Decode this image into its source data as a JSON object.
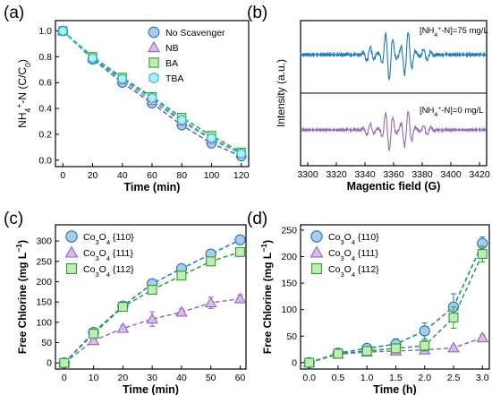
{
  "chart_data": [
    {
      "type": "line",
      "panel_label": "(a)",
      "xlabel": "Time (min)",
      "ylabel": "NH4+-N (C/C0)",
      "ylabel_parts": [
        "NH",
        "4",
        "+",
        "-N (C/C",
        "0",
        ")"
      ],
      "xlim": [
        -5,
        125
      ],
      "ylim": [
        -0.05,
        1.08
      ],
      "xticks": [
        0,
        20,
        40,
        60,
        80,
        100,
        120
      ],
      "yticks": [
        0.0,
        0.2,
        0.4,
        0.6,
        0.8,
        1.0
      ],
      "legend": "top-right",
      "x": [
        0,
        20,
        40,
        60,
        80,
        100,
        120
      ],
      "series": [
        {
          "name": "No Scavenger",
          "marker": "circle",
          "color": "#1f77b4",
          "fill": "#a9cde8",
          "values": [
            1.0,
            0.78,
            0.6,
            0.44,
            0.27,
            0.13,
            0.03
          ]
        },
        {
          "name": "NB",
          "marker": "triangle",
          "color": "#9467bd",
          "fill": "#d4bde8",
          "values": [
            1.0,
            0.79,
            0.62,
            0.46,
            0.3,
            0.16,
            0.05
          ]
        },
        {
          "name": "BA",
          "marker": "square",
          "color": "#2ca02c",
          "fill": "#c3ebb8",
          "values": [
            1.0,
            0.8,
            0.64,
            0.49,
            0.33,
            0.19,
            0.06
          ]
        },
        {
          "name": "TBA",
          "marker": "hexagon",
          "color": "#17becf",
          "fill": "#b6ecf2",
          "values": [
            1.0,
            0.79,
            0.63,
            0.48,
            0.31,
            0.17,
            0.05
          ]
        }
      ]
    },
    {
      "type": "line",
      "panel_label": "(b)",
      "xlabel": "Magentic field (G)",
      "ylabel": "Intensity (a.u.)",
      "xlim": [
        3295,
        3425
      ],
      "xticks": [
        3300,
        3320,
        3340,
        3360,
        3380,
        3400,
        3420
      ],
      "annotations": [
        {
          "label": "[NH4+-N]=75 mg/L",
          "label_parts": [
            "[NH",
            "4",
            "+",
            "-N]=75 mg/L"
          ],
          "color": "#1f77b4"
        },
        {
          "label": "[NH4+-N]=0 mg/L",
          "label_parts": [
            "[NH",
            "4",
            "+",
            "-N]=0 mg/L"
          ],
          "color": "#9467bd"
        }
      ]
    },
    {
      "type": "line",
      "panel_label": "(c)",
      "xlabel": "Time (min)",
      "ylabel": "Free Chlorine (mg L−1)",
      "ylabel_parts": [
        "Free Chlorine (mg L",
        "−1",
        ")"
      ],
      "xlim": [
        -3,
        62
      ],
      "ylim": [
        -15,
        340
      ],
      "xticks": [
        0,
        10,
        20,
        30,
        40,
        50,
        60
      ],
      "yticks": [
        0,
        50,
        100,
        150,
        200,
        250,
        300
      ],
      "legend": "top-left",
      "x": [
        0,
        10,
        20,
        30,
        40,
        50,
        60
      ],
      "series": [
        {
          "name": "Co3O4 {110}",
          "name_parts": [
            "Co",
            "3",
            "O",
            "4",
            " {110}"
          ],
          "marker": "circle",
          "color": "#1f77b4",
          "fill": "#a9cde8",
          "values": [
            0,
            75,
            140,
            195,
            232,
            268,
            303
          ]
        },
        {
          "name": "Co3O4 {111}",
          "name_parts": [
            "Co",
            "3",
            "O",
            "4",
            " {111}"
          ],
          "marker": "triangle",
          "color": "#9467bd",
          "fill": "#d4bde8",
          "values": [
            0,
            55,
            85,
            108,
            125,
            148,
            158
          ],
          "errors": [
            0,
            5,
            7,
            18,
            8,
            14,
            10
          ]
        },
        {
          "name": "Co3O4 {112}",
          "name_parts": [
            "Co",
            "3",
            "O",
            "4",
            " {112}"
          ],
          "marker": "square",
          "color": "#2ca02c",
          "fill": "#c3ebb8",
          "values": [
            0,
            72,
            138,
            180,
            215,
            250,
            273
          ]
        }
      ]
    },
    {
      "type": "line",
      "panel_label": "(d)",
      "xlabel": "Time (h)",
      "ylabel": "Free Chlorine (mg L−1)",
      "ylabel_parts": [
        "Free Chlorine (mg L",
        "−1",
        ")"
      ],
      "xlim": [
        -0.15,
        3.12
      ],
      "ylim": [
        -12,
        260
      ],
      "xticks": [
        0.0,
        0.5,
        1.0,
        1.5,
        2.0,
        2.5,
        3.0
      ],
      "yticks": [
        0,
        50,
        100,
        150,
        200,
        250
      ],
      "legend": "top-left",
      "x": [
        0.0,
        0.5,
        1.0,
        1.5,
        2.0,
        2.5,
        3.0
      ],
      "series": [
        {
          "name": "Co3O4 {110}",
          "name_parts": [
            "Co",
            "3",
            "O",
            "4",
            " {110}"
          ],
          "marker": "circle",
          "color": "#1f77b4",
          "fill": "#a9cde8",
          "values": [
            0,
            18,
            27,
            35,
            60,
            105,
            225
          ],
          "errors": [
            0,
            4,
            6,
            10,
            15,
            25,
            12
          ]
        },
        {
          "name": "Co3O4 {111}",
          "name_parts": [
            "Co",
            "3",
            "O",
            "4",
            " {111}"
          ],
          "marker": "triangle",
          "color": "#9467bd",
          "fill": "#d4bde8",
          "values": [
            0,
            16,
            20,
            22,
            24,
            28,
            47
          ],
          "errors": [
            0,
            3,
            3,
            4,
            4,
            4,
            5
          ]
        },
        {
          "name": "Co3O4 {112}",
          "name_parts": [
            "Co",
            "3",
            "O",
            "4",
            " {112}"
          ],
          "marker": "square",
          "color": "#2ca02c",
          "fill": "#c3ebb8",
          "values": [
            0,
            17,
            22,
            27,
            32,
            85,
            205
          ],
          "errors": [
            0,
            4,
            5,
            8,
            10,
            20,
            15
          ]
        }
      ]
    }
  ]
}
